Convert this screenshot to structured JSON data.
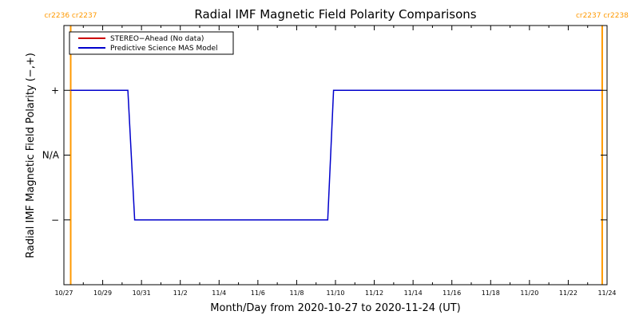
{
  "chart_data": {
    "type": "line",
    "title": "Radial IMF Magnetic Field Polarity Comparisons",
    "xlabel": "Month/Day from 2020-10-27 to 2020-11-24 (UT)",
    "ylabel": "Radial IMF Magnetic Field Polarity (−,+)",
    "x_start_date": "2020-10-27",
    "xlim_days": [
      0,
      28
    ],
    "x_tick_days": [
      0,
      2,
      4,
      6,
      8,
      10,
      12,
      14,
      16,
      18,
      20,
      22,
      24,
      26,
      28
    ],
    "x_tick_labels": [
      "10/27",
      "10/29",
      "10/31",
      "11/2",
      "11/4",
      "11/6",
      "11/8",
      "11/10",
      "11/12",
      "11/14",
      "11/16",
      "11/18",
      "11/20",
      "11/22",
      "11/24"
    ],
    "ylim": [
      -2,
      2
    ],
    "y_ticks": [
      -1,
      0,
      1
    ],
    "y_tick_labels": [
      "−",
      "N/A",
      "+"
    ],
    "legend_position": "top-left",
    "series": [
      {
        "name": "STEREO−Ahead (No data)",
        "color": "#cc0000",
        "x": [],
        "y": []
      },
      {
        "name": "Predictive Science MAS Model",
        "color": "#0000cc",
        "x": [
          0.35,
          3.3,
          3.65,
          13.6,
          13.9,
          27.7
        ],
        "y": [
          1,
          1,
          -1,
          -1,
          1,
          1
        ]
      }
    ],
    "carrington_markers": [
      {
        "day": 0.35,
        "label": "cr2236 cr2237"
      },
      {
        "day": 27.75,
        "label": "cr2237 cr2238"
      }
    ],
    "marker_color": "#ff9900"
  }
}
